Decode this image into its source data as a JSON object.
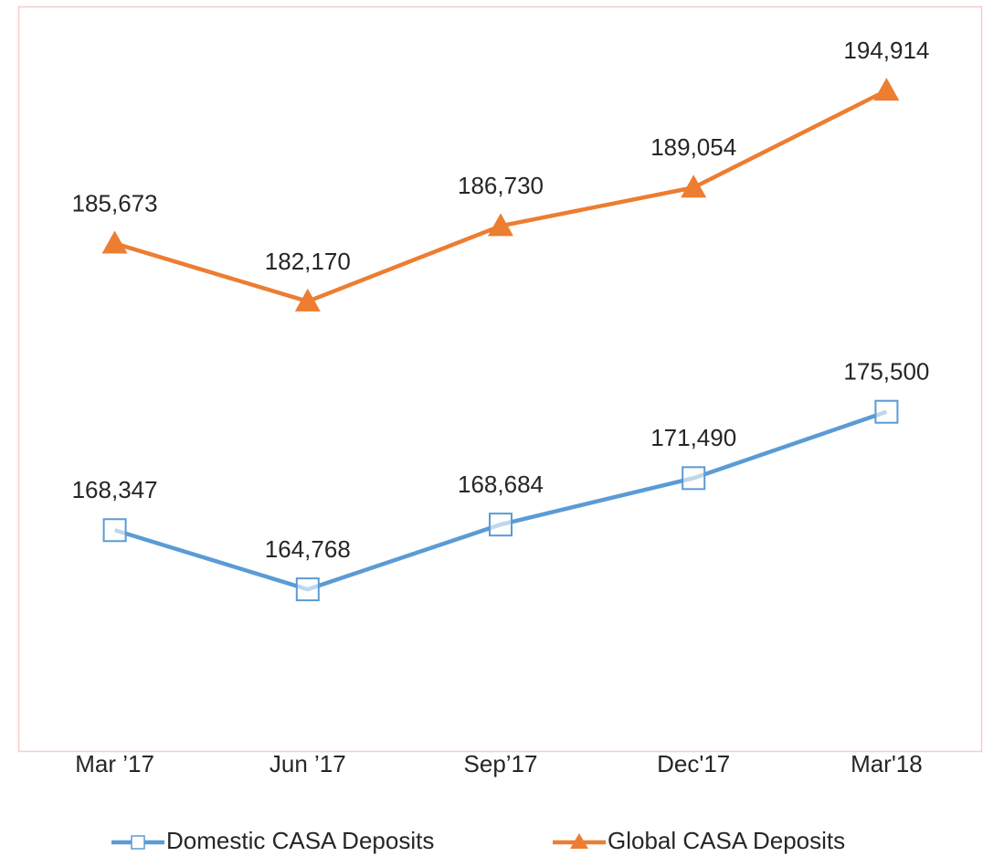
{
  "chart_data": {
    "type": "line",
    "categories": [
      "Mar ’17",
      "Jun ’17",
      "Sep’17",
      "Dec'17",
      "Mar'18"
    ],
    "series": [
      {
        "name": "Domestic CASA Deposits",
        "color": "#5b9bd5",
        "marker": "square",
        "values": [
          168347,
          164768,
          168684,
          171490,
          175500
        ],
        "value_labels": [
          "168,347",
          "164,768",
          "168,684",
          "171,490",
          "175,500"
        ]
      },
      {
        "name": "Global CASA Deposits",
        "color": "#ed7d31",
        "marker": "triangle",
        "values": [
          185673,
          182170,
          186730,
          189054,
          194914
        ],
        "value_labels": [
          "185,673",
          "182,170",
          "186,730",
          "189,054",
          "194,914"
        ]
      }
    ],
    "ylim": [
      155000,
      200000
    ],
    "legend": "bottom"
  }
}
